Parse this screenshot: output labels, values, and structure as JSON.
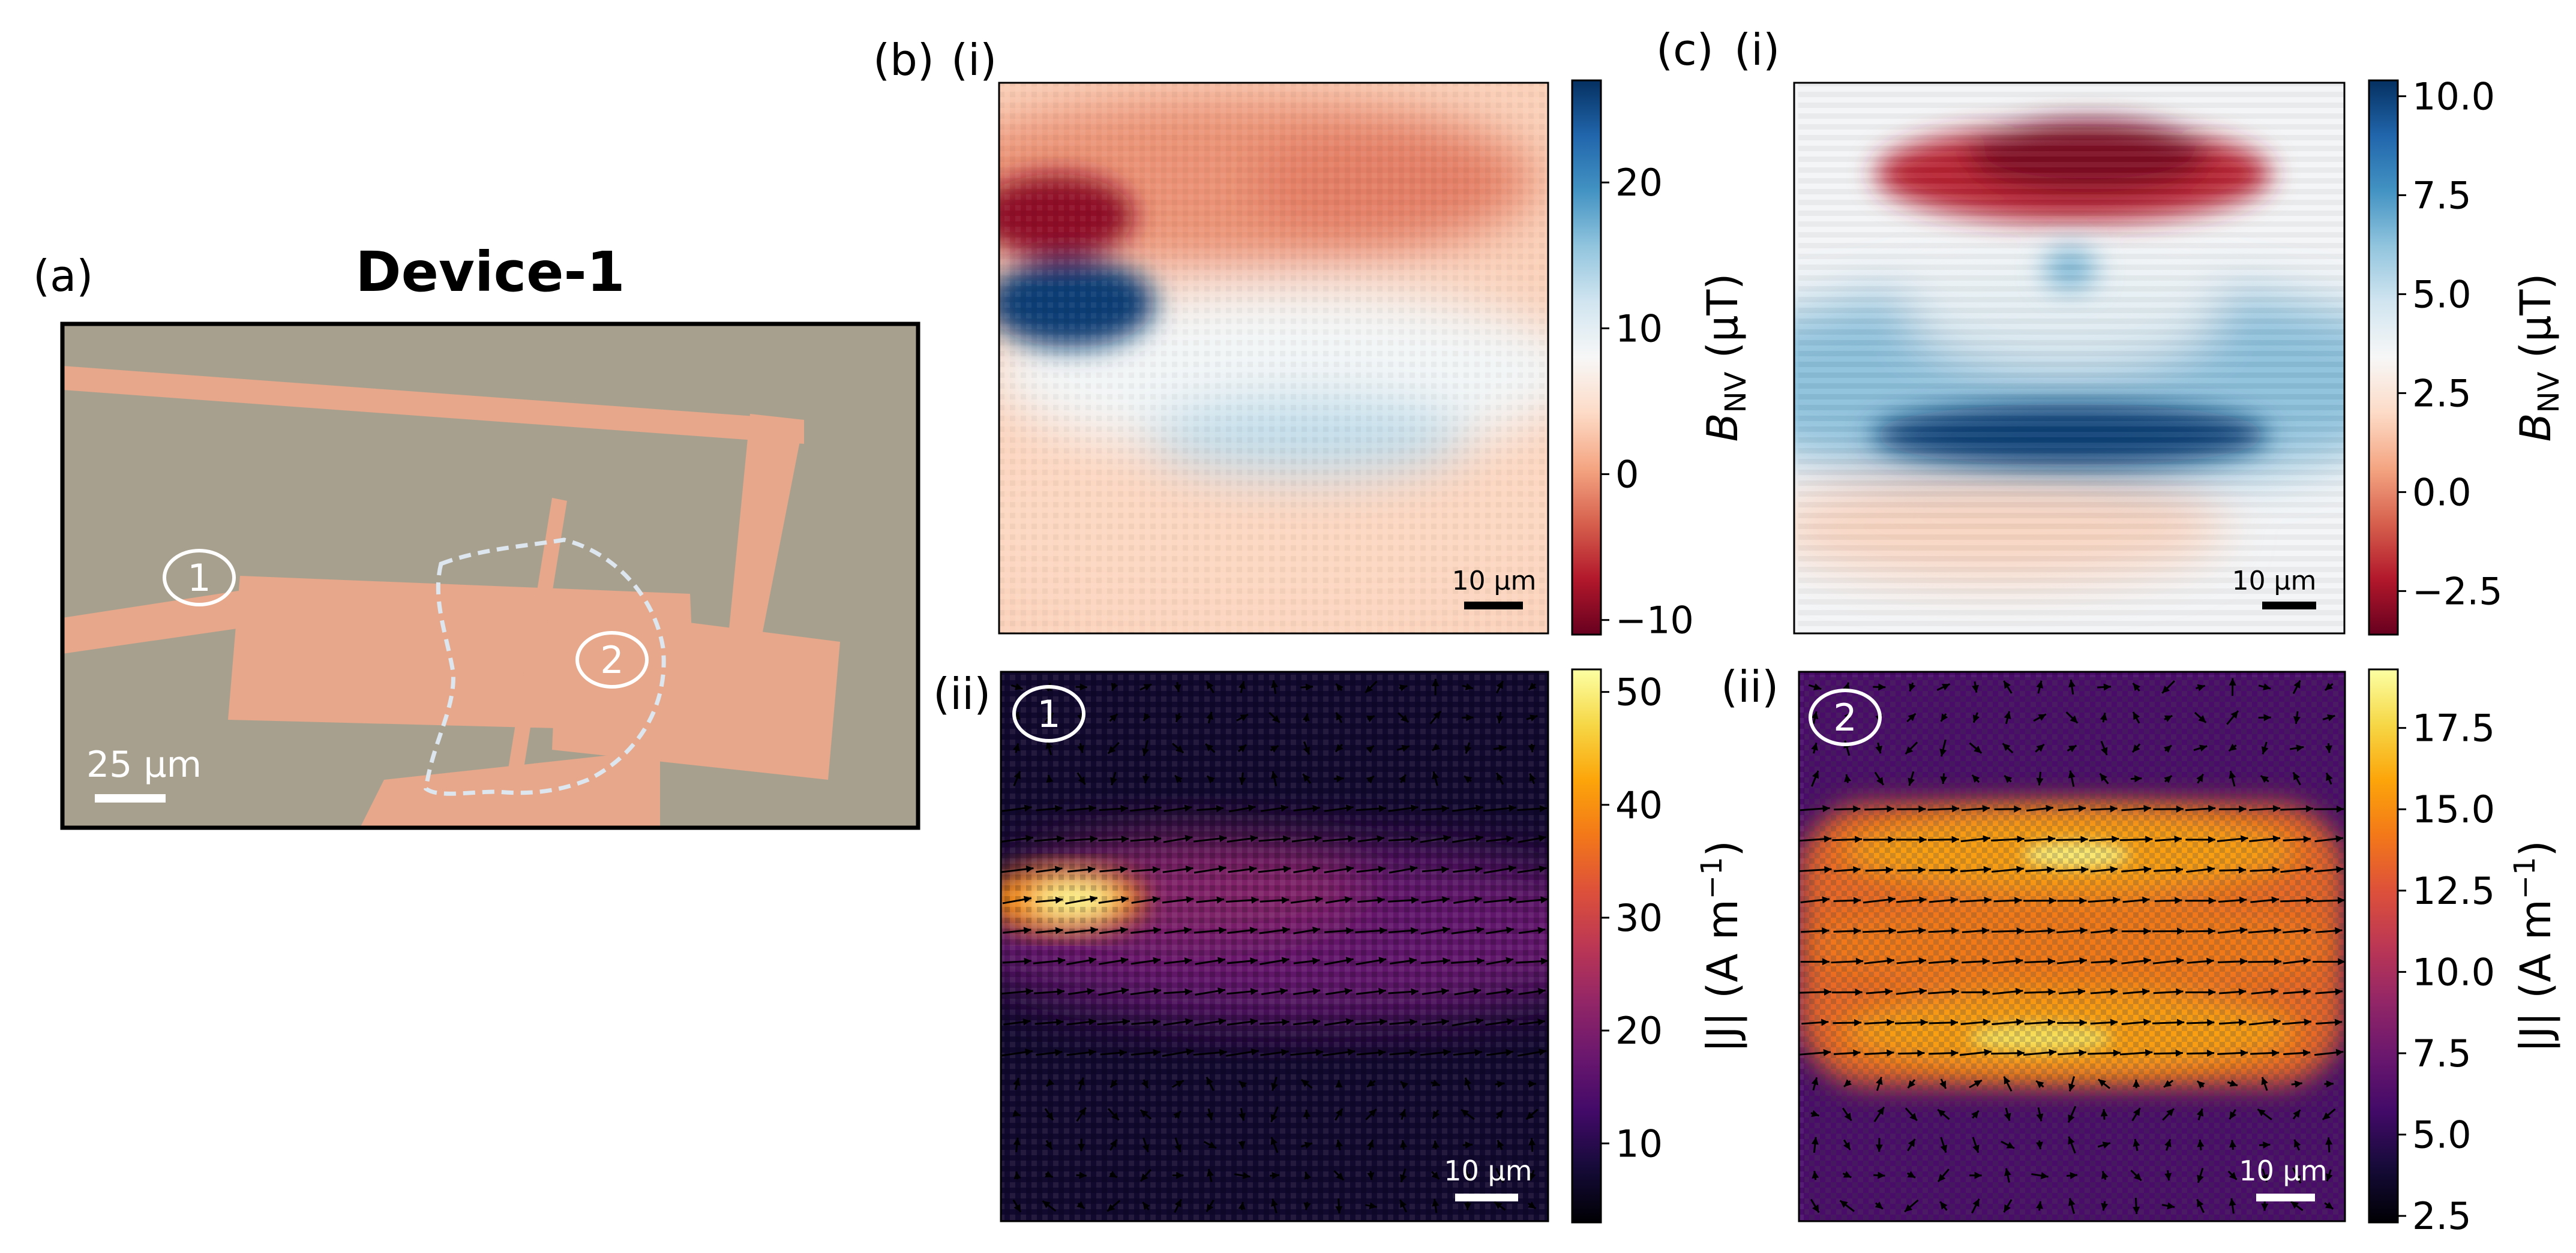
{
  "panel_labels": {
    "a": "(a)",
    "b": "(b)",
    "c": "(c)",
    "b_i": "(i)",
    "b_ii": "(ii)",
    "c_i": "(i)",
    "c_ii": "(ii)"
  },
  "device": {
    "title": "Device-1",
    "scalebar": "25 μm",
    "marker_1": "1",
    "marker_2": "2",
    "colors": {
      "substrate": "#a8a08e",
      "electrode": "#e6a78a",
      "outline": "#dde6ee"
    }
  },
  "maps": {
    "scalebar_text": "10 μm",
    "bnv_b": {
      "colormap": "RdBu",
      "colorbar_label_main": "B",
      "colorbar_label_sub": "NV",
      "colorbar_label_unit": " (μT)",
      "ticks": [
        "20",
        "10",
        "0",
        "−10"
      ],
      "tick_values": [
        20,
        10,
        0,
        -10
      ],
      "range": [
        -11,
        27
      ]
    },
    "bnv_c": {
      "colormap": "RdBu",
      "colorbar_label_main": "B",
      "colorbar_label_sub": "NV",
      "colorbar_label_unit": " (μT)",
      "ticks": [
        "10.0",
        "7.5",
        "5.0",
        "2.5",
        "0.0",
        "−2.5"
      ],
      "tick_values": [
        10.0,
        7.5,
        5.0,
        2.5,
        0.0,
        -2.5
      ],
      "range": [
        -3.6,
        10.4
      ]
    },
    "j_b": {
      "colormap": "inferno",
      "marker": "1",
      "colorbar_label": "|J| (A m",
      "colorbar_label_sup": "−1",
      "colorbar_label_end": ")",
      "ticks": [
        "50",
        "40",
        "30",
        "20",
        "10"
      ],
      "tick_values": [
        50,
        40,
        30,
        20,
        10
      ],
      "range": [
        3,
        52
      ]
    },
    "j_c": {
      "colormap": "inferno",
      "marker": "2",
      "colorbar_label": "|J| (A m",
      "colorbar_label_sup": "−1",
      "colorbar_label_end": ")",
      "ticks": [
        "17.5",
        "15.0",
        "12.5",
        "10.0",
        "7.5",
        "5.0",
        "2.5"
      ],
      "tick_values": [
        17.5,
        15.0,
        12.5,
        10.0,
        7.5,
        5.0,
        2.5
      ],
      "range": [
        2.3,
        19.3
      ]
    }
  }
}
